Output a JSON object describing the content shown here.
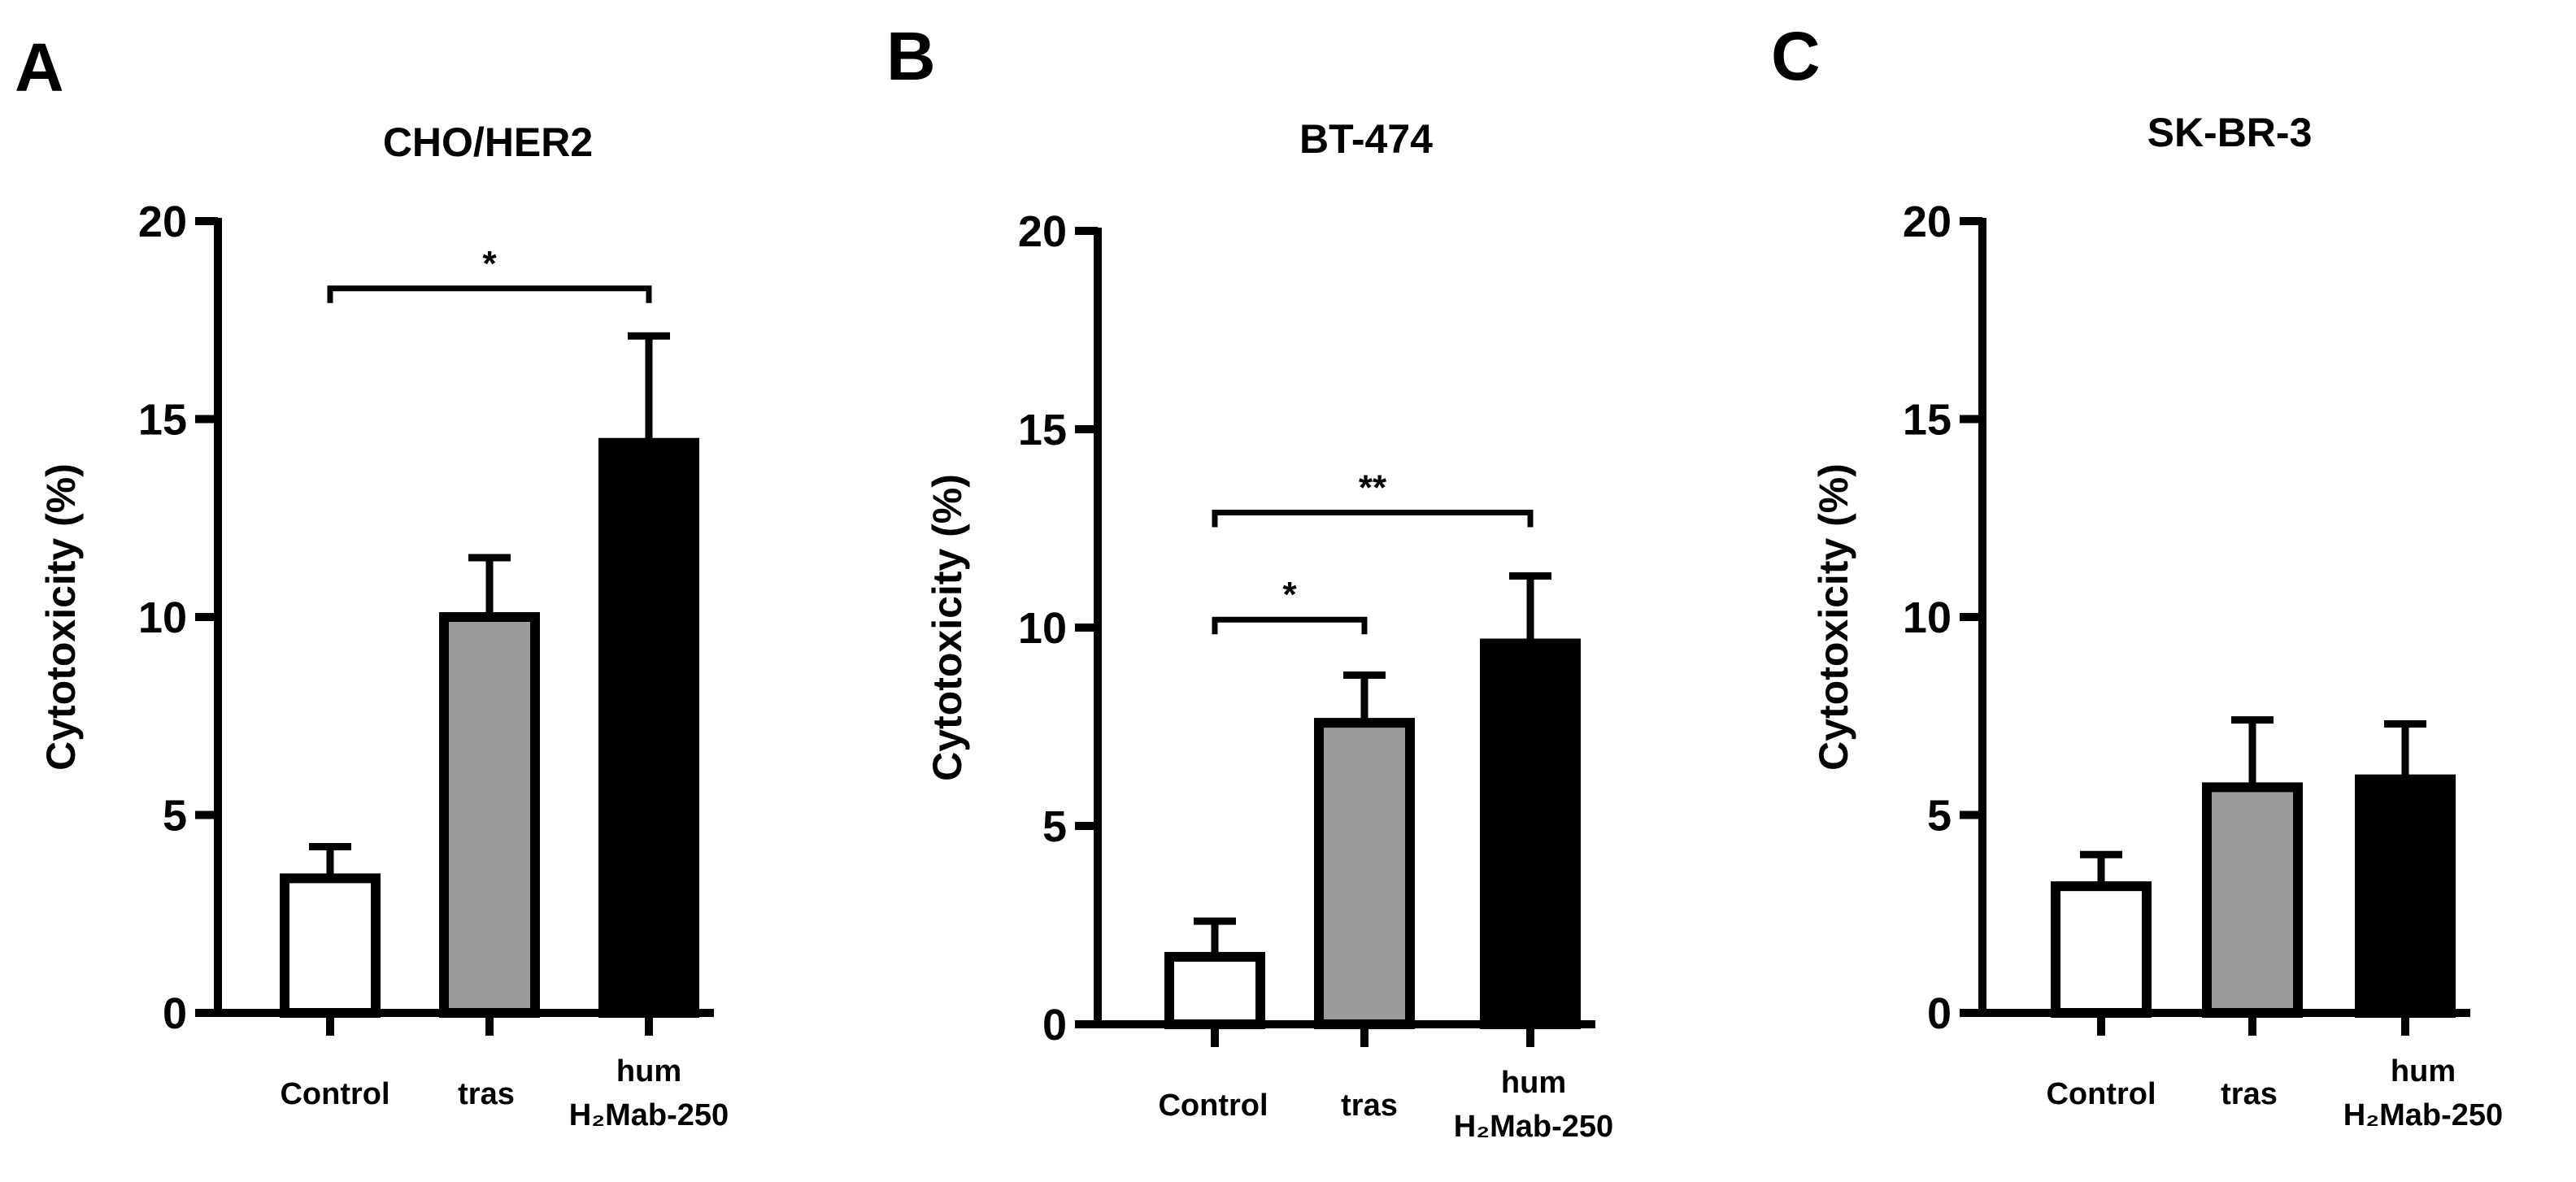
{
  "chart_data": [
    {
      "type": "bar",
      "panel": "A",
      "title": "CHO/HER2",
      "ylabel": "Cytotoxicity (%)",
      "ylim": [
        0,
        20
      ],
      "yticks": [
        "0",
        "5",
        "10",
        "15",
        "20"
      ],
      "categories": [
        {
          "line1": "Control",
          "line2": ""
        },
        {
          "line1": "tras",
          "line2": ""
        },
        {
          "line1": "hum",
          "line2": "H₂Mab-250"
        }
      ],
      "values": [
        3.4,
        10.0,
        14.4
      ],
      "errors": [
        0.8,
        1.5,
        2.7
      ],
      "fills": [
        "#ffffff",
        "#9b9b9e",
        "#000000"
      ],
      "significance": [
        {
          "from": 0,
          "to": 2,
          "label": "*",
          "y": 18.3
        }
      ]
    },
    {
      "type": "bar",
      "panel": "B",
      "title": "BT-474",
      "ylabel": "Cytotoxicity (%)",
      "ylim": [
        0,
        20
      ],
      "yticks": [
        "0",
        "5",
        "10",
        "15",
        "20"
      ],
      "categories": [
        {
          "line1": "Control",
          "line2": ""
        },
        {
          "line1": "tras",
          "line2": ""
        },
        {
          "line1": "hum",
          "line2": "H₂Mab-250"
        }
      ],
      "values": [
        1.7,
        7.6,
        9.6
      ],
      "errors": [
        0.9,
        1.2,
        1.7
      ],
      "fills": [
        "#ffffff",
        "#9b9b9e",
        "#000000"
      ],
      "significance": [
        {
          "from": 0,
          "to": 1,
          "label": "*",
          "y": 10.2
        },
        {
          "from": 0,
          "to": 2,
          "label": "**",
          "y": 12.9
        }
      ]
    },
    {
      "type": "bar",
      "panel": "C",
      "title": "SK-BR-3",
      "ylabel": "Cytotoxicity (%)",
      "ylim": [
        0,
        20
      ],
      "yticks": [
        "0",
        "5",
        "10",
        "15",
        "20"
      ],
      "categories": [
        {
          "line1": "Control",
          "line2": ""
        },
        {
          "line1": "tras",
          "line2": ""
        },
        {
          "line1": "hum",
          "line2": "H₂Mab-250"
        }
      ],
      "values": [
        3.2,
        5.7,
        5.9
      ],
      "errors": [
        0.8,
        1.7,
        1.4
      ],
      "fills": [
        "#ffffff",
        "#9b9b9e",
        "#000000"
      ],
      "significance": []
    }
  ]
}
